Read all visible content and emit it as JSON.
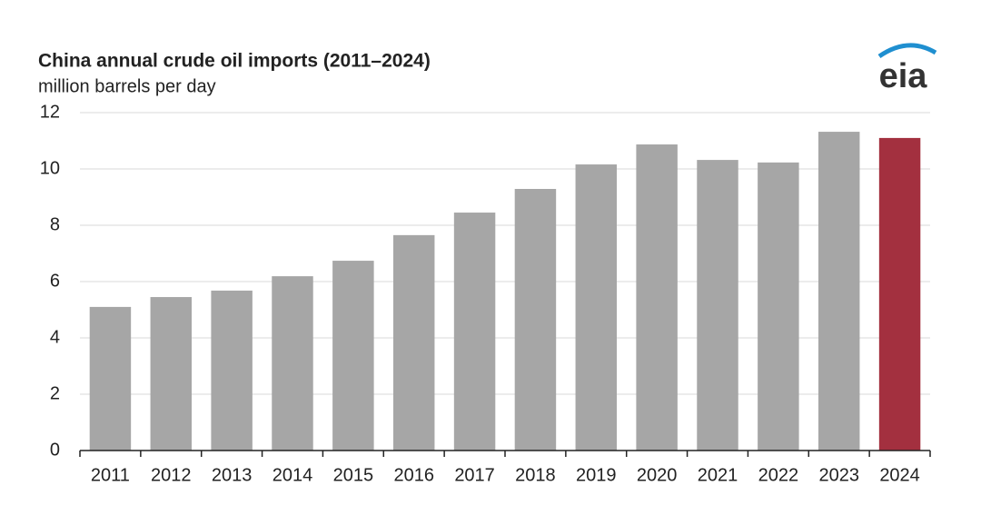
{
  "chart_data": {
    "type": "bar",
    "title": "China annual crude oil imports (2011–2024)",
    "subtitle": "million barrels per day",
    "logo": "eia",
    "categories": [
      "2011",
      "2012",
      "2013",
      "2014",
      "2015",
      "2016",
      "2017",
      "2018",
      "2019",
      "2020",
      "2021",
      "2022",
      "2023",
      "2024"
    ],
    "values": [
      5.1,
      5.45,
      5.68,
      6.19,
      6.74,
      7.65,
      8.45,
      9.29,
      10.16,
      10.87,
      10.32,
      10.23,
      11.32,
      11.1
    ],
    "colors": [
      "#a6a6a6",
      "#a6a6a6",
      "#a6a6a6",
      "#a6a6a6",
      "#a6a6a6",
      "#a6a6a6",
      "#a6a6a6",
      "#a6a6a6",
      "#a6a6a6",
      "#a6a6a6",
      "#a6a6a6",
      "#a6a6a6",
      "#a6a6a6",
      "#a3303f"
    ],
    "ylim": [
      0,
      12
    ],
    "yticks": [
      0,
      2,
      4,
      6,
      8,
      10,
      12
    ],
    "grid": true
  }
}
